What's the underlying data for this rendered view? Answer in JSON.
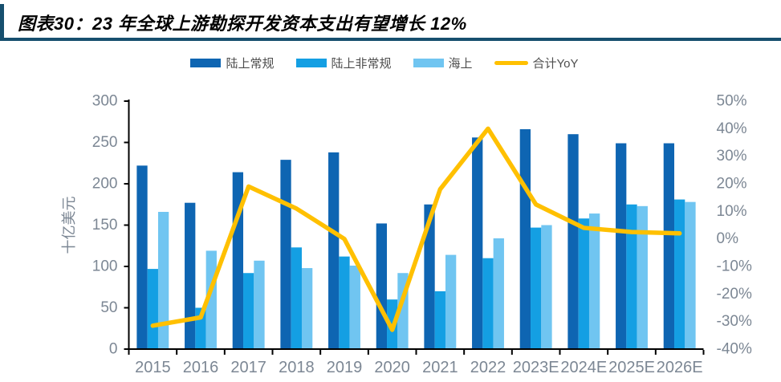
{
  "figure": {
    "caption": "图表30：23 年全球上游勘探开发资本支出有望增长 12%"
  },
  "colors": {
    "accent_rule": "#164f6e",
    "axis_line": "#000000",
    "axis_text": "#7c8794",
    "legend_text": "#4d4d4d",
    "bar_dark_blue": "#0e65b2",
    "bar_mid_blue": "#149fe3",
    "bar_light_blue": "#70c5f1",
    "line_yellow": "#ffc000"
  },
  "chart_data": {
    "type": "bar+line",
    "title": "图表30：23 年全球上游勘探开发资本支出有望增长 12%",
    "categories": [
      "2015",
      "2016",
      "2017",
      "2018",
      "2019",
      "2020",
      "2021",
      "2022",
      "2023E",
      "2024E",
      "2025E",
      "2026E"
    ],
    "series": [
      {
        "name": "陆上常规",
        "chart": "bar",
        "axis": "left",
        "color": "#0e65b2",
        "values": [
          222,
          177,
          214,
          229,
          238,
          152,
          175,
          256,
          266,
          260,
          249,
          249
        ]
      },
      {
        "name": "陆上非常规",
        "chart": "bar",
        "axis": "left",
        "color": "#149fe3",
        "values": [
          97,
          50,
          92,
          123,
          112,
          60,
          70,
          110,
          147,
          158,
          175,
          181
        ]
      },
      {
        "name": "海上",
        "chart": "bar",
        "axis": "left",
        "color": "#70c5f1",
        "values": [
          166,
          119,
          107,
          98,
          101,
          92,
          114,
          134,
          150,
          164,
          173,
          178
        ]
      },
      {
        "name": "合计YoY",
        "chart": "line",
        "axis": "right",
        "color": "#ffc000",
        "values": [
          -31.5,
          -28.5,
          19,
          11,
          0,
          -33,
          18,
          40,
          12.5,
          4,
          2.5,
          2
        ]
      }
    ],
    "left_axis": {
      "title": "十亿美元",
      "min": 0,
      "max": 300,
      "step": 50,
      "tick_labels": [
        "0",
        "50",
        "100",
        "150",
        "200",
        "250",
        "300"
      ]
    },
    "right_axis": {
      "min": -40,
      "max": 50,
      "step": 10,
      "tick_labels": [
        "-40%",
        "-30%",
        "-20%",
        "-10%",
        "0%",
        "10%",
        "20%",
        "30%",
        "40%",
        "50%"
      ]
    },
    "legend_position": "top",
    "grid": false
  }
}
